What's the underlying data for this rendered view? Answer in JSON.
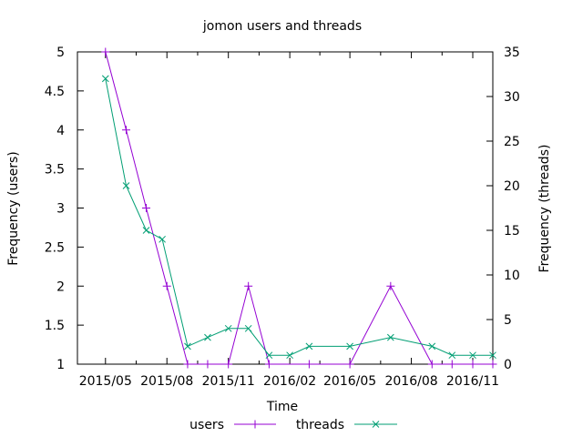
{
  "chart_data": {
    "type": "line",
    "title": "jomon users and threads",
    "xlabel": "Time",
    "ylabel_left": "Frequency (users)",
    "ylabel_right": "Frequency (threads)",
    "xlim": [
      "2015-03-20",
      "2016-12-01"
    ],
    "ylim_left": [
      1,
      5
    ],
    "ylim_right": [
      0,
      35
    ],
    "x_ticks": [
      {
        "date": "2015-05-01",
        "label": "2015/05"
      },
      {
        "date": "2015-08-01",
        "label": "2015/08"
      },
      {
        "date": "2015-11-01",
        "label": "2015/11"
      },
      {
        "date": "2016-02-01",
        "label": "2016/02"
      },
      {
        "date": "2016-05-01",
        "label": "2016/05"
      },
      {
        "date": "2016-08-01",
        "label": "2016/08"
      },
      {
        "date": "2016-11-01",
        "label": "2016/11"
      }
    ],
    "y_ticks_left": [
      "1",
      "1.5",
      "2",
      "2.5",
      "3",
      "3.5",
      "4",
      "4.5",
      "5"
    ],
    "y_ticks_right": [
      "0",
      "5",
      "10",
      "15",
      "20",
      "25",
      "30",
      "35"
    ],
    "legend_position": "bottom",
    "series": [
      {
        "name": "users",
        "axis": "left",
        "color": "#9400d3",
        "marker": "plus",
        "points": [
          {
            "x": "2015-05-01",
            "y": 5
          },
          {
            "x": "2015-06-01",
            "y": 4
          },
          {
            "x": "2015-07-01",
            "y": 3
          },
          {
            "x": "2015-08-01",
            "y": 2
          },
          {
            "x": "2015-09-01",
            "y": 1
          },
          {
            "x": "2015-10-01",
            "y": 1
          },
          {
            "x": "2015-11-01",
            "y": 1
          },
          {
            "x": "2015-12-01",
            "y": 2
          },
          {
            "x": "2016-01-01",
            "y": 1
          },
          {
            "x": "2016-03-01",
            "y": 1
          },
          {
            "x": "2016-05-01",
            "y": 1
          },
          {
            "x": "2016-07-01",
            "y": 2
          },
          {
            "x": "2016-09-01",
            "y": 1
          },
          {
            "x": "2016-10-01",
            "y": 1
          },
          {
            "x": "2016-11-01",
            "y": 1
          },
          {
            "x": "2016-12-01",
            "y": 1
          }
        ]
      },
      {
        "name": "threads",
        "axis": "right",
        "color": "#009e73",
        "marker": "cross",
        "points": [
          {
            "x": "2015-05-01",
            "y": 32
          },
          {
            "x": "2015-06-01",
            "y": 20
          },
          {
            "x": "2015-07-01",
            "y": 15
          },
          {
            "x": "2015-07-25",
            "y": 14
          },
          {
            "x": "2015-09-01",
            "y": 2
          },
          {
            "x": "2015-10-01",
            "y": 3
          },
          {
            "x": "2015-11-01",
            "y": 4
          },
          {
            "x": "2015-12-01",
            "y": 4
          },
          {
            "x": "2016-01-01",
            "y": 1
          },
          {
            "x": "2016-02-01",
            "y": 1
          },
          {
            "x": "2016-03-01",
            "y": 2
          },
          {
            "x": "2016-05-01",
            "y": 2
          },
          {
            "x": "2016-07-01",
            "y": 3
          },
          {
            "x": "2016-09-01",
            "y": 2
          },
          {
            "x": "2016-10-01",
            "y": 1
          },
          {
            "x": "2016-11-01",
            "y": 1
          },
          {
            "x": "2016-12-01",
            "y": 1
          }
        ]
      }
    ]
  }
}
